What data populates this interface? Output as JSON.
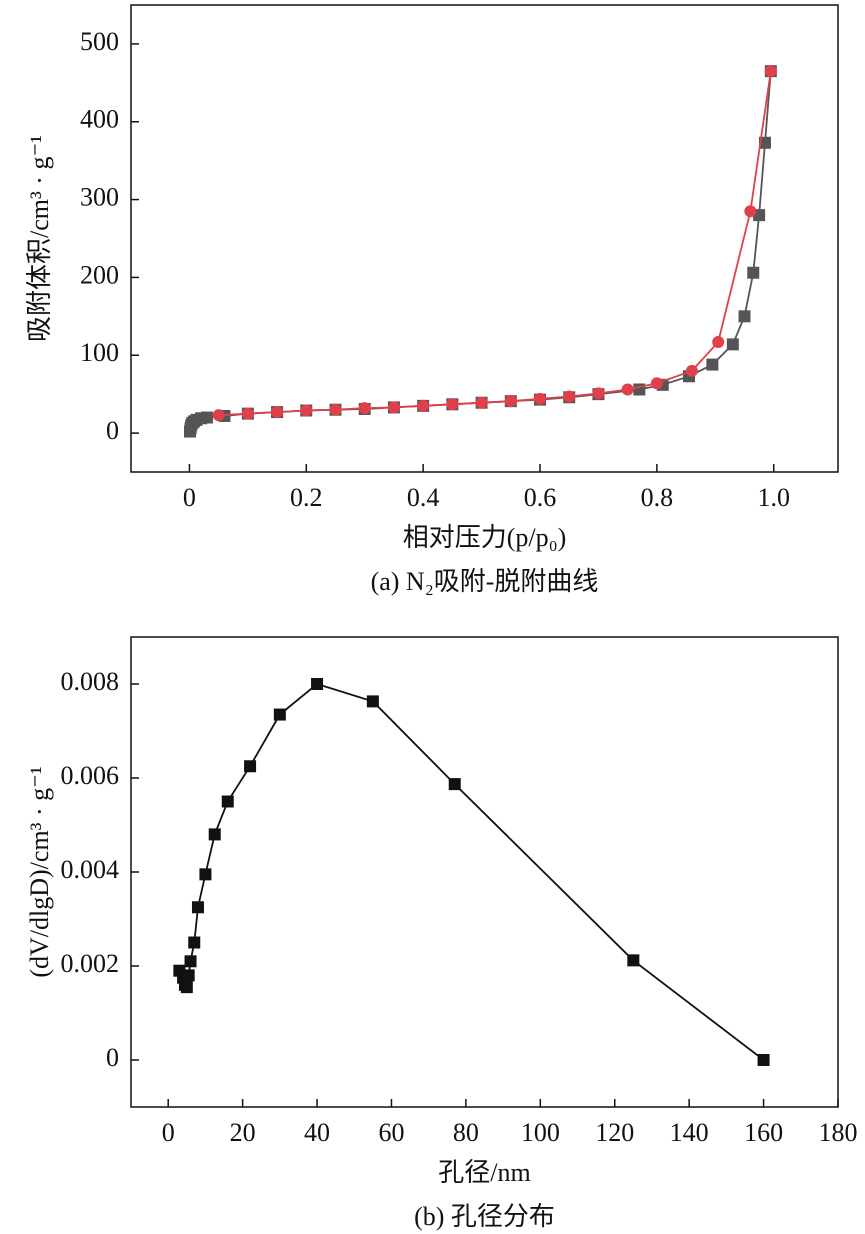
{
  "chart_data": [
    {
      "type": "line",
      "caption": "(a) N₂吸附-脱附曲线",
      "x_label": "相对压力(p/p₀)",
      "y_label": "吸附体积/cm³ · g⁻¹",
      "xlim": [
        -0.1,
        1.11
      ],
      "ylim": [
        -50,
        550
      ],
      "xticks": [
        0,
        0.2,
        0.4,
        0.6,
        0.8,
        {
          "value": 1,
          "label": "1.0"
        }
      ],
      "yticks": [
        0,
        100,
        200,
        300,
        400,
        500
      ],
      "marker": [
        "square",
        "circle"
      ],
      "series": [
        {
          "color": "#555555",
          "x": [
            0.001,
            0.002,
            0.003,
            0.005,
            0.008,
            0.012,
            0.02,
            0.03,
            0.06,
            0.1,
            0.15,
            0.2,
            0.25,
            0.3,
            0.35,
            0.4,
            0.45,
            0.5,
            0.55,
            0.6,
            0.65,
            0.7,
            0.77,
            0.81,
            0.855,
            0.895,
            0.93,
            0.95,
            0.965,
            0.975,
            0.985,
            0.995
          ],
          "values": [
            2,
            6,
            10,
            13,
            15,
            17,
            19,
            20,
            22,
            25,
            27,
            29,
            30,
            31,
            33,
            35,
            37,
            39,
            41,
            43,
            46,
            50,
            56,
            62,
            73,
            88,
            114,
            150,
            206,
            280,
            373,
            465
          ]
        },
        {
          "color": "#e0404a",
          "x": [
            0.05,
            0.1,
            0.15,
            0.2,
            0.25,
            0.3,
            0.35,
            0.4,
            0.45,
            0.5,
            0.55,
            0.6,
            0.65,
            0.7,
            0.75,
            0.8,
            0.86,
            0.905,
            0.96,
            0.995
          ],
          "values": [
            23,
            25,
            27,
            29,
            30,
            32,
            33,
            35,
            37,
            39,
            41,
            44,
            47,
            51,
            56,
            64,
            80,
            117,
            285,
            465
          ]
        }
      ]
    },
    {
      "type": "line",
      "caption": "(b) 孔径分布",
      "x_label": "孔径/nm",
      "y_label": "(dV/dlgD)/cm³ · g⁻¹",
      "xlim": [
        -10,
        180
      ],
      "ylim": [
        -0.001,
        0.009
      ],
      "xticks": [
        0,
        20,
        40,
        60,
        80,
        100,
        120,
        140,
        160,
        180
      ],
      "yticks": [
        0,
        0.002,
        0.004,
        0.006,
        0.008
      ],
      "marker": [
        "square"
      ],
      "series": [
        {
          "color": "#111111",
          "x": [
            3,
            4,
            4.5,
            5,
            5.5,
            6,
            7,
            8,
            10,
            12.5,
            16,
            22,
            30,
            40,
            55,
            77,
            125,
            160
          ],
          "values": [
            0.0019,
            0.00175,
            0.0016,
            0.00155,
            0.0018,
            0.0021,
            0.0025,
            0.00325,
            0.00395,
            0.0048,
            0.0055,
            0.00625,
            0.00735,
            0.008,
            0.00763,
            0.00587,
            0.00212,
            0
          ]
        }
      ]
    }
  ]
}
